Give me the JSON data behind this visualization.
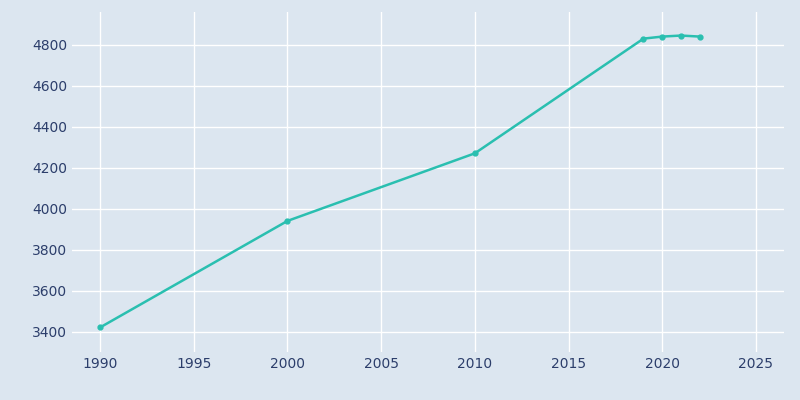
{
  "years": [
    1990,
    2000,
    2010,
    2019,
    2020,
    2021,
    2022
  ],
  "population": [
    3420,
    3940,
    4270,
    4830,
    4840,
    4845,
    4840
  ],
  "line_color": "#2abfb0",
  "marker": "o",
  "marker_size": 3.5,
  "linewidth": 1.8,
  "bg_color": "#dce6f0",
  "plot_bg_color": "#dce6f0",
  "grid_color": "#FFFFFF",
  "tick_color": "#2C3E6B",
  "xlim": [
    1988.5,
    2026.5
  ],
  "ylim": [
    3300,
    4960
  ],
  "xticks": [
    1990,
    1995,
    2000,
    2005,
    2010,
    2015,
    2020,
    2025
  ],
  "yticks": [
    3400,
    3600,
    3800,
    4000,
    4200,
    4400,
    4600,
    4800
  ]
}
